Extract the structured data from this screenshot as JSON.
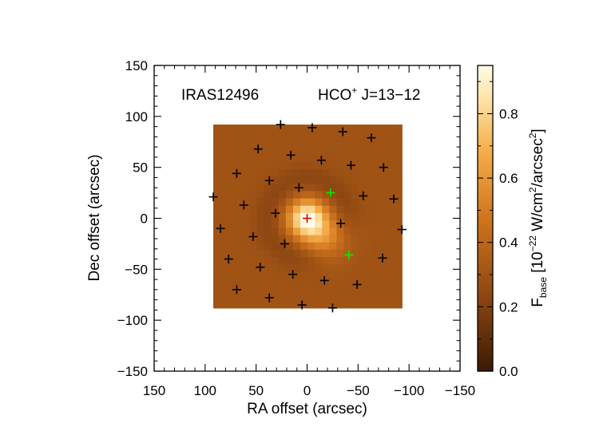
{
  "chart_data": {
    "type": "heatmap",
    "title": "",
    "xlabel": "RA offset (arcsec)",
    "ylabel": "Dec offset (arcsec)",
    "xlim": [
      150,
      -150
    ],
    "ylim": [
      -150,
      150
    ],
    "x_ticks": [
      "150",
      "100",
      "50",
      "0",
      "−50",
      "−100",
      "−150"
    ],
    "y_ticks": [
      "−150",
      "−100",
      "−50",
      "0",
      "50",
      "100",
      "150"
    ],
    "annotations": {
      "source": "IRAS12496",
      "line_species": "HCO",
      "line_sup": "+",
      "line_transition": " J=13−12"
    },
    "colorbar": {
      "label_main": "F",
      "label_sub": "base",
      "label_unit_a": " [10",
      "label_exp1": "−22",
      "label_unit_b": " W/cm",
      "label_exp2": "2",
      "label_unit_c": "/arcsec",
      "label_exp3": "2",
      "label_unit_d": "]",
      "range": [
        0.0,
        0.95
      ],
      "ticks": [
        "0.0",
        "0.2",
        "0.4",
        "0.6",
        "0.8"
      ],
      "colormap": "orange-heat"
    },
    "map_extent": {
      "x": [
        92,
        -93
      ],
      "y": [
        -88,
        92
      ]
    },
    "peak": {
      "x": 0,
      "y": 0,
      "value": 0.95,
      "sigma": 13
    },
    "secondary_peak": {
      "x": -20,
      "y": -20,
      "value": 0.55,
      "sigma": 15
    },
    "background": 0.3,
    "markers": {
      "center": {
        "x": 0,
        "y": 0,
        "color": "#e00000"
      },
      "highlighted": [
        {
          "x": -23,
          "y": 25,
          "color": "#00ee00"
        },
        {
          "x": -41,
          "y": -36,
          "color": "#00ee00"
        }
      ],
      "positions": [
        [
          26,
          92
        ],
        [
          -5,
          89
        ],
        [
          -35,
          85
        ],
        [
          -63,
          79
        ],
        [
          48,
          68
        ],
        [
          16,
          62
        ],
        [
          -14,
          57
        ],
        [
          -43,
          52
        ],
        [
          -75,
          50
        ],
        [
          69,
          44
        ],
        [
          37,
          37
        ],
        [
          8,
          30
        ],
        [
          -55,
          22
        ],
        [
          -85,
          19
        ],
        [
          92,
          21
        ],
        [
          62,
          13
        ],
        [
          31,
          5
        ],
        [
          -33,
          -5
        ],
        [
          85,
          -10
        ],
        [
          53,
          -18
        ],
        [
          22,
          -25
        ],
        [
          -93,
          -11
        ],
        [
          77,
          -40
        ],
        [
          46,
          -48
        ],
        [
          14,
          -55
        ],
        [
          -17,
          -61
        ],
        [
          -49,
          -65
        ],
        [
          -74,
          -39
        ],
        [
          69,
          -70
        ],
        [
          37,
          -78
        ],
        [
          5,
          -85
        ],
        [
          -25,
          -88
        ]
      ],
      "color": "#000000"
    }
  }
}
